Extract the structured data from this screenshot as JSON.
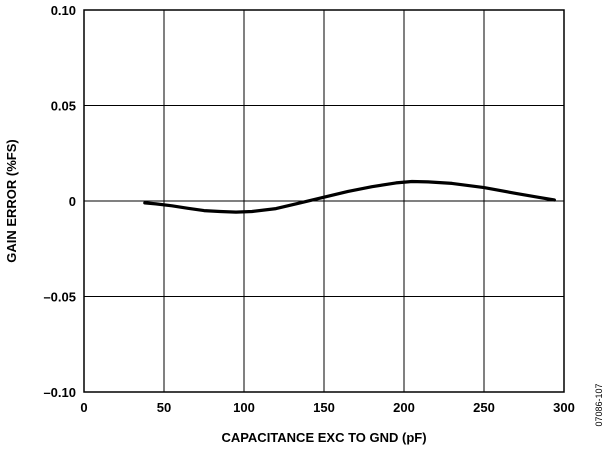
{
  "chart_data": {
    "type": "line",
    "xlabel": "CAPACITANCE EXC TO GND (pF)",
    "ylabel": "GAIN ERROR (%FS)",
    "xlim": [
      0,
      300
    ],
    "ylim": [
      -0.1,
      0.1
    ],
    "x_ticks": [
      0,
      50,
      100,
      150,
      200,
      250,
      300
    ],
    "y_ticks": [
      0.1,
      0.05,
      0,
      -0.05,
      -0.1
    ],
    "x_tick_labels": [
      "0",
      "50",
      "100",
      "150",
      "200",
      "250",
      "300"
    ],
    "y_tick_labels": [
      "0.10",
      "0.05",
      "0",
      "–0.05",
      "–0.10"
    ],
    "grid": true,
    "series": [
      {
        "x": [
          38,
          45,
          55,
          65,
          75,
          85,
          95,
          105,
          120,
          135,
          150,
          165,
          180,
          195,
          205,
          215,
          230,
          250,
          270,
          285,
          294
        ],
        "y": [
          -0.001,
          -0.0015,
          -0.0025,
          -0.0038,
          -0.005,
          -0.0055,
          -0.0058,
          -0.0055,
          -0.004,
          -0.001,
          0.002,
          0.005,
          0.0075,
          0.0095,
          0.0102,
          0.01,
          0.0092,
          0.007,
          0.004,
          0.0018,
          0.0005
        ]
      }
    ],
    "figure_id": "07086-107"
  }
}
